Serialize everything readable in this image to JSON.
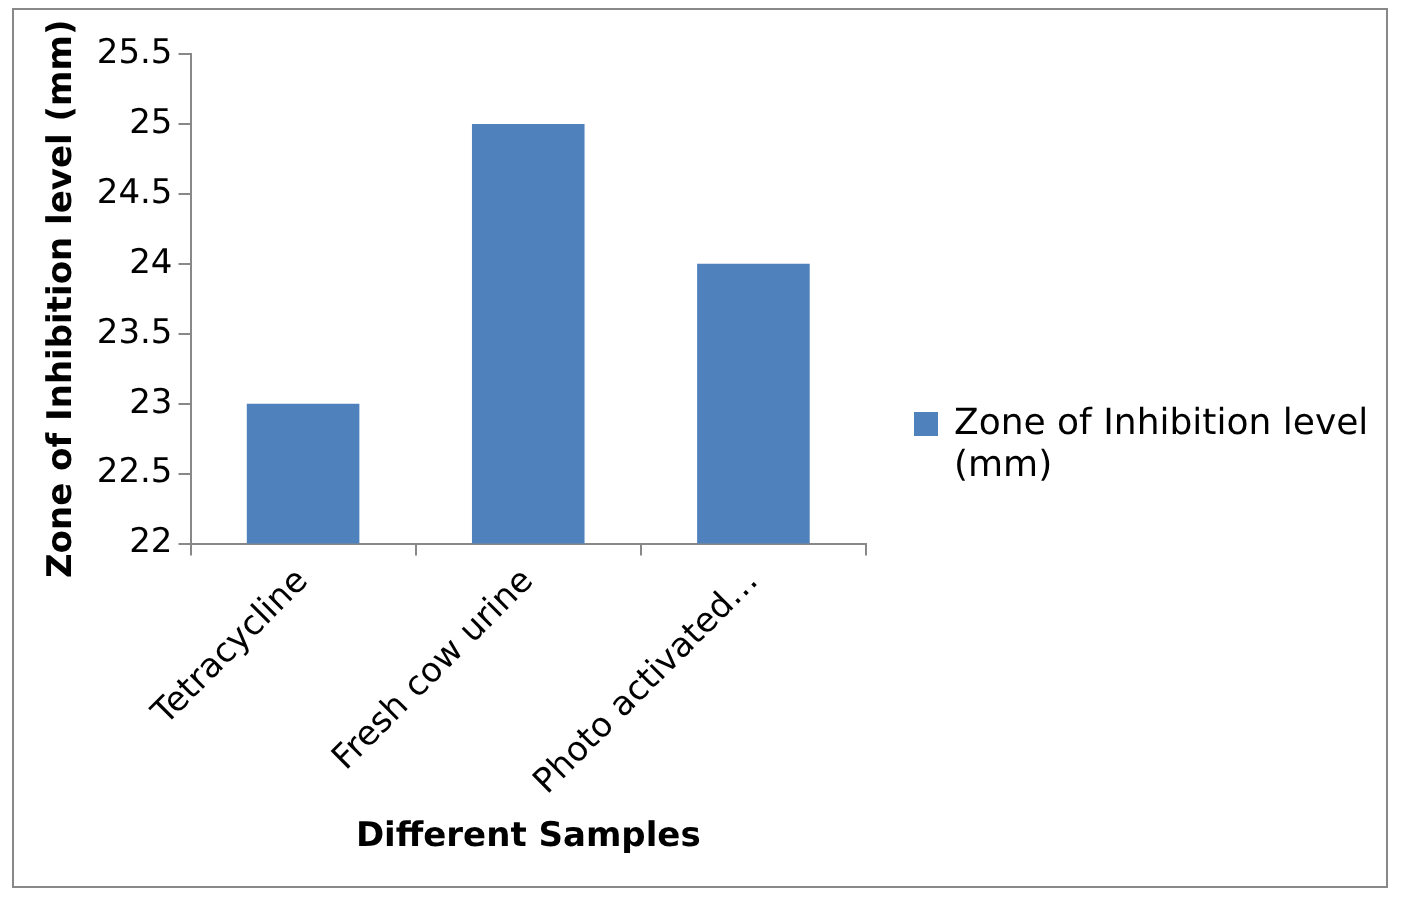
{
  "chart_data": {
    "type": "bar",
    "xlabel": "Different Samples",
    "ylabel": "Zone of Inhibition level (mm)",
    "categories": [
      "Tetracycline",
      "Fresh cow urine",
      "Photo activated…"
    ],
    "series": [
      {
        "name": "Zone of Inhibition level  (mm)",
        "color": "#4f81bd",
        "values": [
          23,
          25,
          24
        ]
      }
    ],
    "ylim": [
      22,
      25.5
    ],
    "yticks": [
      22,
      {
        "value": 22.5,
        "label": "22.5"
      },
      23,
      {
        "value": 23.5,
        "label": "23.5"
      },
      24,
      {
        "value": 24.5,
        "label": "24.5"
      },
      25,
      {
        "value": 25.5,
        "label": "25.5"
      }
    ],
    "grid": false,
    "legend": "right"
  }
}
